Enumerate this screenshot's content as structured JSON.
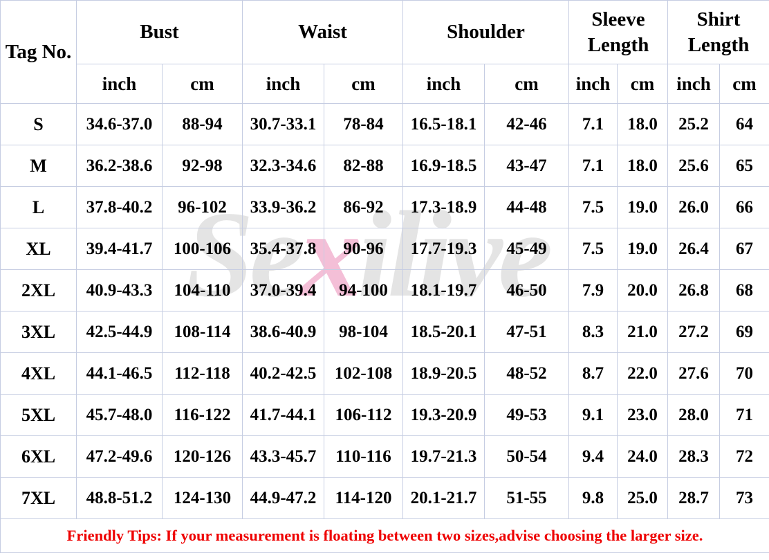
{
  "header": {
    "corner": "Tag No.",
    "groups": [
      {
        "label": "Bust"
      },
      {
        "label": "Waist"
      },
      {
        "label": "Shoulder"
      },
      {
        "label": "Sleeve Length"
      },
      {
        "label": "Shirt Length"
      }
    ],
    "unit_inch": "inch",
    "unit_cm": "cm"
  },
  "chart_data": {
    "type": "table",
    "columns": [
      "Tag No.",
      "Bust inch",
      "Bust cm",
      "Waist inch",
      "Waist cm",
      "Shoulder inch",
      "Shoulder cm",
      "Sleeve Length inch",
      "Sleeve Length cm",
      "Shirt Length inch",
      "Shirt Length cm"
    ],
    "rows": [
      [
        "S",
        "34.6-37.0",
        "88-94",
        "30.7-33.1",
        "78-84",
        "16.5-18.1",
        "42-46",
        "7.1",
        "18.0",
        "25.2",
        "64"
      ],
      [
        "M",
        "36.2-38.6",
        "92-98",
        "32.3-34.6",
        "82-88",
        "16.9-18.5",
        "43-47",
        "7.1",
        "18.0",
        "25.6",
        "65"
      ],
      [
        "L",
        "37.8-40.2",
        "96-102",
        "33.9-36.2",
        "86-92",
        "17.3-18.9",
        "44-48",
        "7.5",
        "19.0",
        "26.0",
        "66"
      ],
      [
        "XL",
        "39.4-41.7",
        "100-106",
        "35.4-37.8",
        "90-96",
        "17.7-19.3",
        "45-49",
        "7.5",
        "19.0",
        "26.4",
        "67"
      ],
      [
        "2XL",
        "40.9-43.3",
        "104-110",
        "37.0-39.4",
        "94-100",
        "18.1-19.7",
        "46-50",
        "7.9",
        "20.0",
        "26.8",
        "68"
      ],
      [
        "3XL",
        "42.5-44.9",
        "108-114",
        "38.6-40.9",
        "98-104",
        "18.5-20.1",
        "47-51",
        "8.3",
        "21.0",
        "27.2",
        "69"
      ],
      [
        "4XL",
        "44.1-46.5",
        "112-118",
        "40.2-42.5",
        "102-108",
        "18.9-20.5",
        "48-52",
        "8.7",
        "22.0",
        "27.6",
        "70"
      ],
      [
        "5XL",
        "45.7-48.0",
        "116-122",
        "41.7-44.1",
        "106-112",
        "19.3-20.9",
        "49-53",
        "9.1",
        "23.0",
        "28.0",
        "71"
      ],
      [
        "6XL",
        "47.2-49.6",
        "120-126",
        "43.3-45.7",
        "110-116",
        "19.7-21.3",
        "50-54",
        "9.4",
        "24.0",
        "28.3",
        "72"
      ],
      [
        "7XL",
        "48.8-51.2",
        "124-130",
        "44.9-47.2",
        "114-120",
        "20.1-21.7",
        "51-55",
        "9.8",
        "25.0",
        "28.7",
        "73"
      ]
    ]
  },
  "footer": {
    "tip": "Friendly Tips: If your measurement is floating between two sizes,advise choosing the larger size."
  },
  "watermark": {
    "prefix": "Se",
    "accent": "x",
    "suffix": "ilive"
  },
  "colors": {
    "grid_line": "#c6cde2",
    "tip_text": "#ee0000",
    "watermark_gray": "#e4e4e4",
    "watermark_pink": "#f4bfd7",
    "text": "#000000",
    "background": "#ffffff"
  }
}
